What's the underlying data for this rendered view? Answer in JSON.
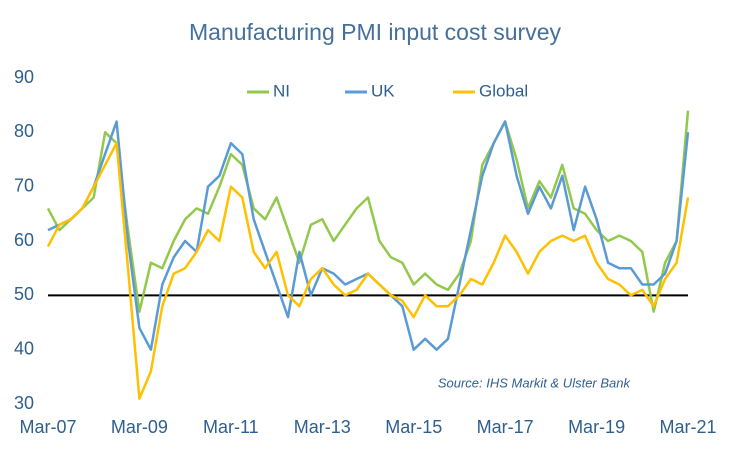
{
  "chart_data": {
    "type": "line",
    "title": "Manufacturing PMI input cost survey",
    "annotation": "Source: IHS Markit & Ulster Bank",
    "x": [
      "Mar-07",
      "Jun-07",
      "Sep-07",
      "Dec-07",
      "Mar-08",
      "Jun-08",
      "Sep-08",
      "Dec-08",
      "Mar-09",
      "Jun-09",
      "Sep-09",
      "Dec-09",
      "Mar-10",
      "Jun-10",
      "Sep-10",
      "Dec-10",
      "Mar-11",
      "Jun-11",
      "Sep-11",
      "Dec-11",
      "Mar-12",
      "Jun-12",
      "Sep-12",
      "Dec-12",
      "Mar-13",
      "Jun-13",
      "Sep-13",
      "Dec-13",
      "Mar-14",
      "Jun-14",
      "Sep-14",
      "Dec-14",
      "Mar-15",
      "Jun-15",
      "Sep-15",
      "Dec-15",
      "Mar-16",
      "Jun-16",
      "Sep-16",
      "Dec-16",
      "Mar-17",
      "Jun-17",
      "Sep-17",
      "Dec-17",
      "Mar-18",
      "Jun-18",
      "Sep-18",
      "Dec-18",
      "Mar-19",
      "Jun-19",
      "Sep-19",
      "Dec-19",
      "Mar-20",
      "Jun-20",
      "Sep-20",
      "Dec-20",
      "Mar-21"
    ],
    "series": [
      {
        "name": "NI",
        "color": "#92c94a",
        "values": [
          66,
          62,
          64,
          66,
          68,
          80,
          78,
          62,
          47,
          56,
          55,
          60,
          64,
          66,
          65,
          70,
          76,
          74,
          66,
          64,
          68,
          62,
          56,
          63,
          64,
          60,
          63,
          66,
          68,
          60,
          57,
          56,
          52,
          54,
          52,
          51,
          54,
          60,
          74,
          78,
          82,
          75,
          66,
          71,
          68,
          74,
          66,
          65,
          62,
          60,
          61,
          60,
          58,
          47,
          56,
          60,
          84
        ]
      },
      {
        "name": "UK",
        "color": "#5b9bd5",
        "values": [
          62,
          63,
          64,
          66,
          70,
          76,
          82,
          60,
          44,
          40,
          52,
          57,
          60,
          58,
          70,
          72,
          78,
          76,
          64,
          58,
          52,
          46,
          58,
          50,
          55,
          54,
          52,
          53,
          54,
          52,
          50,
          48,
          40,
          42,
          40,
          42,
          52,
          62,
          72,
          78,
          82,
          72,
          65,
          70,
          66,
          72,
          62,
          70,
          64,
          56,
          55,
          55,
          52,
          52,
          54,
          60,
          80
        ]
      },
      {
        "name": "Global",
        "color": "#ffc000",
        "values": [
          59,
          63,
          64,
          66,
          70,
          74,
          78,
          55,
          31,
          36,
          48,
          54,
          55,
          58,
          62,
          60,
          70,
          68,
          58,
          55,
          58,
          50,
          48,
          53,
          55,
          52,
          50,
          51,
          54,
          52,
          50,
          49,
          46,
          50,
          48,
          48,
          50,
          53,
          52,
          56,
          61,
          58,
          54,
          58,
          60,
          61,
          60,
          61,
          56,
          53,
          52,
          50,
          51,
          48,
          53,
          56,
          68
        ]
      }
    ],
    "xticks": [
      "Mar-07",
      "Mar-09",
      "Mar-11",
      "Mar-13",
      "Mar-15",
      "Mar-17",
      "Mar-19",
      "Mar-21"
    ],
    "ylim": [
      30,
      90
    ],
    "yticks": [
      30,
      40,
      50,
      60,
      70,
      80,
      90
    ],
    "reference_line": 50,
    "grid": false,
    "legend": "top"
  }
}
